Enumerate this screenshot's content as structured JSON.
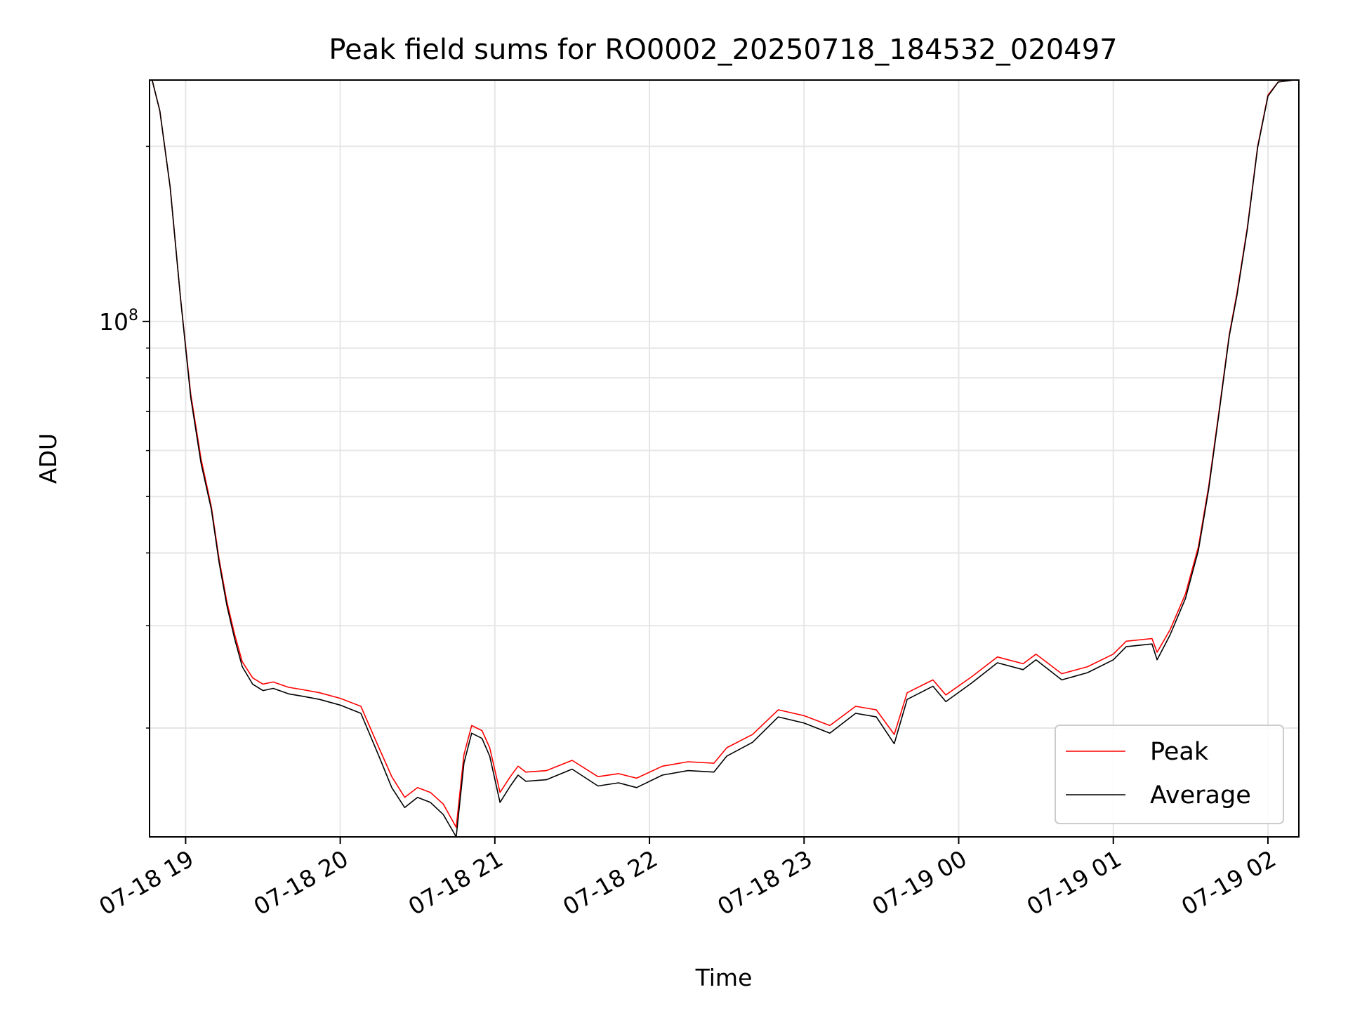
{
  "chart_data": {
    "type": "line",
    "title": "Peak field sums for RO0002_20250718_184532_020497",
    "xlabel": "Time",
    "ylabel": "ADU",
    "y_scale": "log",
    "ylim": [
      13000000,
      260000000
    ],
    "xlim": [
      "2025-07-18 18:46",
      "2025-07-19 02:12"
    ],
    "x_ticks": [
      "07-18 19",
      "07-18 20",
      "07-18 21",
      "07-18 22",
      "07-18 23",
      "07-19 00",
      "07-19 01",
      "07-19 02"
    ],
    "y_ticks": [
      {
        "value": 100000000,
        "base": "10",
        "exponent": "8"
      }
    ],
    "grid": true,
    "legend_position": "lower right",
    "x": [
      "2025-07-18 18:47",
      "2025-07-18 18:50",
      "2025-07-18 18:54",
      "2025-07-18 18:58",
      "2025-07-18 19:02",
      "2025-07-18 19:06",
      "2025-07-18 19:10",
      "2025-07-18 19:13",
      "2025-07-18 19:16",
      "2025-07-18 19:19",
      "2025-07-18 19:22",
      "2025-07-18 19:26",
      "2025-07-18 19:30",
      "2025-07-18 19:34",
      "2025-07-18 19:40",
      "2025-07-18 19:45",
      "2025-07-18 19:52",
      "2025-07-18 20:00",
      "2025-07-18 20:08",
      "2025-07-18 20:15",
      "2025-07-18 20:20",
      "2025-07-18 20:25",
      "2025-07-18 20:30",
      "2025-07-18 20:35",
      "2025-07-18 20:40",
      "2025-07-18 20:45",
      "2025-07-18 20:48",
      "2025-07-18 20:51",
      "2025-07-18 20:55",
      "2025-07-18 20:58",
      "2025-07-18 21:02",
      "2025-07-18 21:06",
      "2025-07-18 21:09",
      "2025-07-18 21:12",
      "2025-07-18 21:20",
      "2025-07-18 21:30",
      "2025-07-18 21:40",
      "2025-07-18 21:48",
      "2025-07-18 21:55",
      "2025-07-18 22:05",
      "2025-07-18 22:15",
      "2025-07-18 22:25",
      "2025-07-18 22:30",
      "2025-07-18 22:40",
      "2025-07-18 22:50",
      "2025-07-18 23:00",
      "2025-07-18 23:10",
      "2025-07-18 23:20",
      "2025-07-18 23:28",
      "2025-07-18 23:35",
      "2025-07-18 23:40",
      "2025-07-18 23:50",
      "2025-07-18 23:55",
      "2025-07-19 00:05",
      "2025-07-19 00:15",
      "2025-07-19 00:25",
      "2025-07-19 00:30",
      "2025-07-19 00:40",
      "2025-07-19 00:50",
      "2025-07-19 01:00",
      "2025-07-19 01:05",
      "2025-07-19 01:15",
      "2025-07-19 01:17",
      "2025-07-19 01:22",
      "2025-07-19 01:28",
      "2025-07-19 01:33",
      "2025-07-19 01:37",
      "2025-07-19 01:41",
      "2025-07-19 01:45",
      "2025-07-19 01:48",
      "2025-07-19 01:52",
      "2025-07-19 01:56",
      "2025-07-19 02:00",
      "2025-07-19 02:04",
      "2025-07-19 02:10"
    ],
    "series": [
      {
        "name": "Peak",
        "color": "#ff0000",
        "values": [
          260000000,
          230000000,
          170000000,
          110000000,
          75000000,
          58000000,
          48000000,
          39000000,
          33000000,
          29000000,
          26000000,
          24400000,
          23800000,
          24000000,
          23500000,
          23300000,
          23000000,
          22500000,
          21800000,
          18500000,
          16500000,
          15200000,
          15800000,
          15500000,
          14800000,
          13500000,
          18000000,
          20200000,
          19800000,
          18500000,
          15500000,
          16500000,
          17200000,
          16800000,
          16900000,
          17600000,
          16500000,
          16700000,
          16400000,
          17200000,
          17500000,
          17400000,
          18500000,
          19500000,
          21500000,
          21000000,
          20200000,
          21800000,
          21500000,
          19500000,
          23000000,
          24200000,
          22800000,
          24500000,
          26500000,
          25800000,
          26800000,
          24800000,
          25500000,
          26800000,
          28200000,
          28500000,
          27000000,
          29500000,
          34000000,
          41000000,
          52000000,
          70000000,
          95000000,
          112000000,
          145000000,
          200000000,
          245000000,
          258000000,
          260000000
        ]
      },
      {
        "name": "Average",
        "color": "#000000",
        "values": [
          260000000,
          230000000,
          170000000,
          110000000,
          74000000,
          57000000,
          47500000,
          38500000,
          32500000,
          28500000,
          25500000,
          23800000,
          23200000,
          23400000,
          22900000,
          22700000,
          22400000,
          21900000,
          21200000,
          17900000,
          15800000,
          14600000,
          15200000,
          14900000,
          14200000,
          13000000,
          17400000,
          19600000,
          19200000,
          17900000,
          14900000,
          15900000,
          16600000,
          16200000,
          16300000,
          17000000,
          15900000,
          16100000,
          15800000,
          16600000,
          16900000,
          16800000,
          17900000,
          18900000,
          20900000,
          20400000,
          19600000,
          21200000,
          20900000,
          18800000,
          22400000,
          23600000,
          22200000,
          23900000,
          25900000,
          25200000,
          26200000,
          24200000,
          24900000,
          26200000,
          27600000,
          27900000,
          26200000,
          28900000,
          33400000,
          40400000,
          51400000,
          69400000,
          94400000,
          111000000,
          144000000,
          199000000,
          244000000,
          258000000,
          260000000
        ]
      }
    ]
  }
}
